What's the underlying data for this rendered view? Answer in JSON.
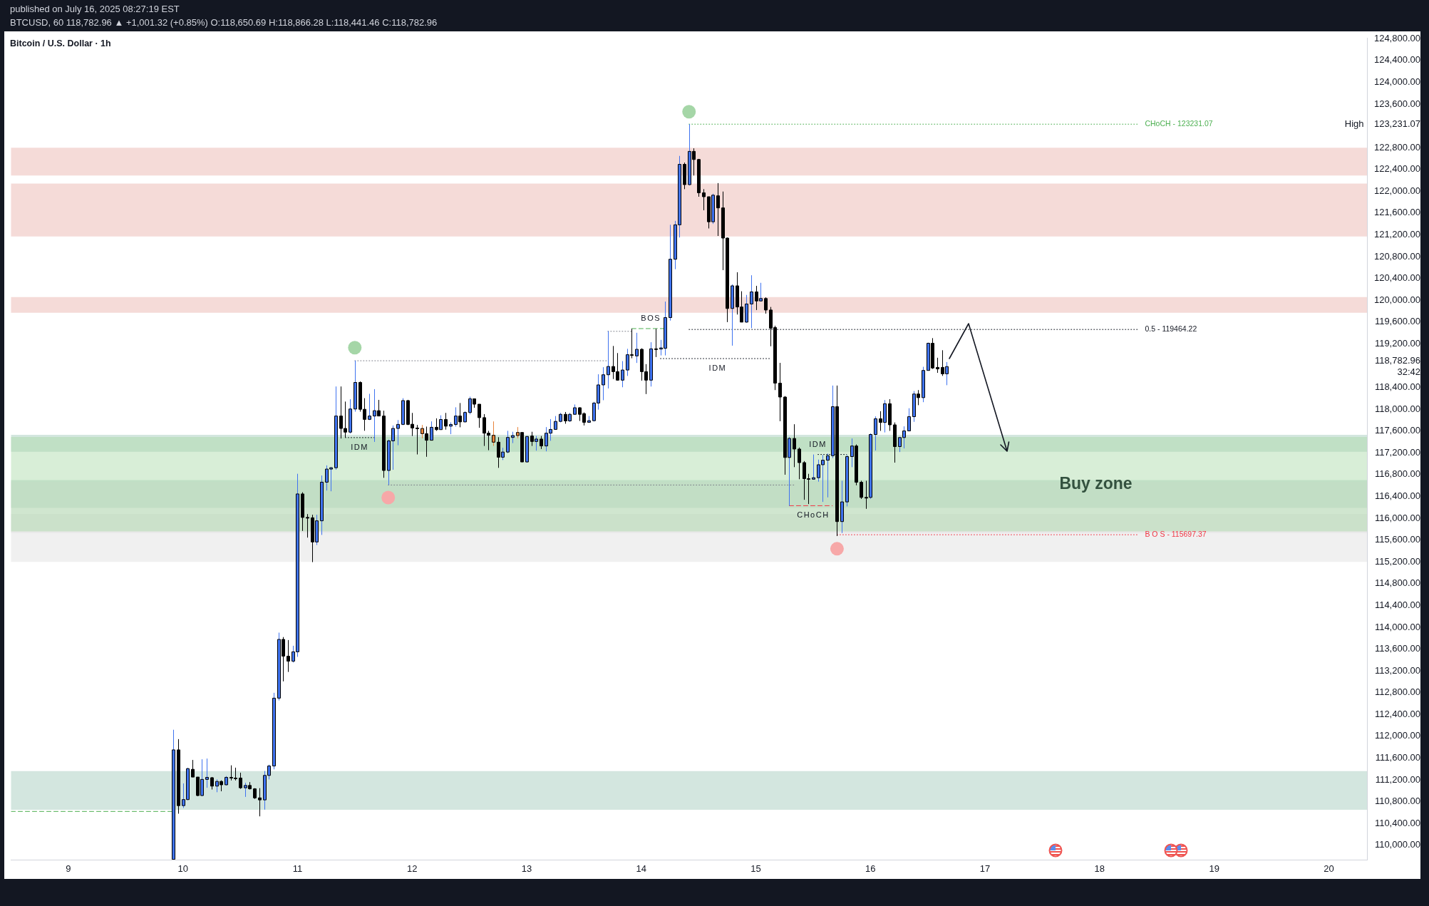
{
  "chart_data": {
    "type": "candlestick",
    "title": "Bitcoin / U.S. Dollar · 1h",
    "subtitle": "BTCUSD, 60  118,782.96 ▲ +1,001.32 (+0.85%)  O:118,650.69  H:118,866.28  L:118,441.46  C:118,782.96",
    "annotations": [
      "published on July 16, 2025 08:27:19 EST",
      {
        "text": "IDM",
        "x": "2025-07-11T13:00",
        "y": 117480
      },
      {
        "text": "BOS",
        "x": "2025-07-14T02:00",
        "y": 119480
      },
      {
        "text": "IDM",
        "x": "2025-07-14T16:00",
        "y": 118930
      },
      {
        "text": "IDM",
        "x": "2025-07-15T13:00",
        "y": 117170
      },
      {
        "text": "CHoCH",
        "x": "2025-07-15T12:00",
        "y": 116230
      }
    ],
    "x": [
      "2025-07-09T22:00",
      "2025-07-09T23:00",
      "2025-07-10T00:00",
      "2025-07-10T01:00",
      "2025-07-10T02:00",
      "2025-07-10T03:00",
      "2025-07-10T04:00",
      "2025-07-10T05:00",
      "2025-07-10T06:00",
      "2025-07-10T07:00",
      "2025-07-10T08:00",
      "2025-07-10T09:00",
      "2025-07-10T10:00",
      "2025-07-10T11:00",
      "2025-07-10T12:00",
      "2025-07-10T13:00",
      "2025-07-10T14:00",
      "2025-07-10T15:00",
      "2025-07-10T16:00",
      "2025-07-10T17:00",
      "2025-07-10T18:00",
      "2025-07-10T19:00",
      "2025-07-10T20:00",
      "2025-07-10T21:00",
      "2025-07-10T22:00",
      "2025-07-10T23:00",
      "2025-07-11T00:00",
      "2025-07-11T01:00",
      "2025-07-11T02:00",
      "2025-07-11T03:00",
      "2025-07-11T04:00",
      "2025-07-11T05:00",
      "2025-07-11T06:00",
      "2025-07-11T07:00",
      "2025-07-11T08:00",
      "2025-07-11T09:00",
      "2025-07-11T10:00",
      "2025-07-11T11:00",
      "2025-07-11T12:00",
      "2025-07-11T13:00",
      "2025-07-11T14:00",
      "2025-07-11T15:00",
      "2025-07-11T16:00",
      "2025-07-11T17:00",
      "2025-07-11T18:00",
      "2025-07-11T19:00",
      "2025-07-11T20:00",
      "2025-07-11T21:00",
      "2025-07-11T22:00",
      "2025-07-11T23:00",
      "2025-07-12T00:00",
      "2025-07-12T01:00",
      "2025-07-12T02:00",
      "2025-07-12T03:00",
      "2025-07-12T04:00",
      "2025-07-12T05:00",
      "2025-07-12T06:00",
      "2025-07-12T07:00",
      "2025-07-12T08:00",
      "2025-07-12T09:00",
      "2025-07-12T10:00",
      "2025-07-12T11:00",
      "2025-07-12T12:00",
      "2025-07-12T13:00",
      "2025-07-12T14:00",
      "2025-07-12T15:00",
      "2025-07-12T16:00",
      "2025-07-12T17:00",
      "2025-07-12T18:00",
      "2025-07-12T19:00",
      "2025-07-12T20:00",
      "2025-07-12T21:00",
      "2025-07-12T22:00",
      "2025-07-12T23:00",
      "2025-07-13T00:00",
      "2025-07-13T01:00",
      "2025-07-13T02:00",
      "2025-07-13T03:00",
      "2025-07-13T04:00",
      "2025-07-13T05:00",
      "2025-07-13T06:00",
      "2025-07-13T07:00",
      "2025-07-13T08:00",
      "2025-07-13T09:00",
      "2025-07-13T10:00",
      "2025-07-13T11:00",
      "2025-07-13T12:00",
      "2025-07-13T13:00",
      "2025-07-13T14:00",
      "2025-07-13T15:00",
      "2025-07-13T16:00",
      "2025-07-13T17:00",
      "2025-07-13T18:00",
      "2025-07-13T19:00",
      "2025-07-13T20:00",
      "2025-07-13T21:00",
      "2025-07-13T22:00",
      "2025-07-13T23:00",
      "2025-07-14T00:00",
      "2025-07-14T01:00",
      "2025-07-14T02:00",
      "2025-07-14T03:00",
      "2025-07-14T04:00",
      "2025-07-14T05:00",
      "2025-07-14T06:00",
      "2025-07-14T07:00",
      "2025-07-14T08:00",
      "2025-07-14T09:00",
      "2025-07-14T10:00",
      "2025-07-14T11:00",
      "2025-07-14T12:00",
      "2025-07-14T13:00",
      "2025-07-14T14:00",
      "2025-07-14T15:00",
      "2025-07-14T16:00",
      "2025-07-14T17:00",
      "2025-07-14T18:00",
      "2025-07-14T19:00",
      "2025-07-14T20:00",
      "2025-07-14T21:00",
      "2025-07-14T22:00",
      "2025-07-14T23:00",
      "2025-07-15T00:00",
      "2025-07-15T01:00",
      "2025-07-15T02:00",
      "2025-07-15T03:00",
      "2025-07-15T04:00",
      "2025-07-15T05:00",
      "2025-07-15T06:00",
      "2025-07-15T07:00",
      "2025-07-15T08:00",
      "2025-07-15T09:00",
      "2025-07-15T10:00",
      "2025-07-15T11:00",
      "2025-07-15T12:00",
      "2025-07-15T13:00",
      "2025-07-15T14:00",
      "2025-07-15T15:00",
      "2025-07-15T16:00",
      "2025-07-15T17:00",
      "2025-07-15T18:00",
      "2025-07-15T19:00",
      "2025-07-15T20:00",
      "2025-07-15T21:00",
      "2025-07-15T22:00",
      "2025-07-15T23:00",
      "2025-07-16T00:00",
      "2025-07-16T01:00",
      "2025-07-16T02:00",
      "2025-07-16T03:00",
      "2025-07-16T04:00",
      "2025-07-16T05:00",
      "2025-07-16T06:00",
      "2025-07-16T07:00",
      "2025-07-16T08:00",
      "2025-07-16T09:00",
      "2025-07-16T10:00",
      "2025-07-16T11:00",
      "2025-07-16T12:00",
      "2025-07-16T13:00",
      "2025-07-16T14:00",
      "2025-07-16T15:00",
      "2025-07-16T16:00"
    ],
    "ohlc": [
      [
        109740,
        112119,
        109740,
        111750
      ],
      [
        111750,
        111947,
        110579,
        110727
      ],
      [
        110727,
        111134,
        110684,
        110838
      ],
      [
        110838,
        111423,
        110826,
        111405
      ],
      [
        111393,
        111565,
        111251,
        111251
      ],
      [
        111251,
        111251,
        110899,
        110912
      ],
      [
        110912,
        111577,
        110899,
        111208
      ],
      [
        111208,
        111590,
        111054,
        111245
      ],
      [
        111239,
        111251,
        111023,
        111085
      ],
      [
        111085,
        111208,
        110973,
        111171
      ],
      [
        111171,
        111190,
        110990,
        111109
      ],
      [
        111109,
        111269,
        111097,
        111245
      ],
      [
        111245,
        111466,
        111189,
        111233
      ],
      [
        111233,
        111423,
        111189,
        111227
      ],
      [
        111233,
        111331,
        111035,
        111054
      ],
      [
        111054,
        111146,
        110887,
        111097
      ],
      [
        111097,
        111158,
        111023,
        111035
      ],
      [
        111035,
        111047,
        110850,
        110869
      ],
      [
        110869,
        111047,
        110530,
        110832
      ],
      [
        110832,
        111362,
        110653,
        111281
      ],
      [
        111281,
        111478,
        111208,
        111454
      ],
      [
        111454,
        112797,
        111392,
        112699
      ],
      [
        112699,
        113901,
        112656,
        113777
      ],
      [
        113777,
        113820,
        113007,
        113469
      ],
      [
        113469,
        113765,
        113180,
        113377
      ],
      [
        113377,
        113660,
        113352,
        113549
      ],
      [
        113549,
        116816,
        113457,
        116446
      ],
      [
        116446,
        116477,
        115768,
        116015
      ],
      [
        116015,
        116076,
        115645,
        116009
      ],
      [
        116009,
        116064,
        115195,
        115565
      ],
      [
        115565,
        116064,
        115509,
        115953
      ],
      [
        115953,
        116785,
        115694,
        116662
      ],
      [
        116662,
        116970,
        116508,
        116902
      ],
      [
        116902,
        116939,
        116495,
        116927
      ],
      [
        116927,
        118418,
        116890,
        117876
      ],
      [
        117876,
        118418,
        117463,
        117648
      ],
      [
        117648,
        118141,
        117481,
        117580
      ],
      [
        117580,
        118184,
        117555,
        118005
      ],
      [
        118005,
        118893,
        117956,
        118492
      ],
      [
        118492,
        118511,
        117956,
        117999
      ],
      [
        117999,
        118203,
        117605,
        117814
      ],
      [
        117814,
        118283,
        117802,
        117876
      ],
      [
        117876,
        118369,
        117401,
        117974
      ],
      [
        117974,
        118172,
        117876,
        117876
      ],
      [
        117876,
        117974,
        116742,
        116877
      ],
      [
        116877,
        117444,
        116612,
        117420
      ],
      [
        117420,
        117703,
        116890,
        117648
      ],
      [
        117648,
        117802,
        117340,
        117722
      ],
      [
        117722,
        118203,
        117709,
        118159
      ],
      [
        118159,
        118172,
        117709,
        117722
      ],
      [
        117725,
        117933,
        117509,
        117656
      ],
      [
        117656,
        117712,
        117171,
        117650
      ],
      [
        117647,
        117712,
        117466,
        117552
      ],
      [
        117552,
        117682,
        117128,
        117431
      ],
      [
        117431,
        117777,
        117431,
        117669
      ],
      [
        117669,
        117833,
        117604,
        117626
      ],
      [
        117626,
        117889,
        117626,
        117812
      ],
      [
        117812,
        117933,
        117626,
        117690
      ],
      [
        117690,
        117760,
        117543,
        117721
      ],
      [
        117721,
        118036,
        117682,
        117876
      ],
      [
        117876,
        118114,
        117669,
        117768
      ],
      [
        117768,
        117963,
        117760,
        117941
      ],
      [
        117941,
        118231,
        117907,
        118192
      ],
      [
        118192,
        118192,
        118028,
        118093
      ],
      [
        118093,
        118093,
        117660,
        117846
      ],
      [
        117846,
        117911,
        117327,
        117561
      ],
      [
        117561,
        117604,
        117249,
        117522
      ],
      [
        117522,
        117777,
        117327,
        117396
      ],
      [
        117396,
        117487,
        116925,
        117120
      ],
      [
        117120,
        117293,
        117068,
        117215
      ],
      [
        117215,
        117604,
        117193,
        117483
      ],
      [
        117483,
        117587,
        117379,
        117517
      ],
      [
        117517,
        117673,
        117466,
        117574
      ],
      [
        117574,
        117574,
        117033,
        117033
      ],
      [
        117033,
        117509,
        117025,
        117500
      ],
      [
        117509,
        117587,
        117327,
        117409
      ],
      [
        117409,
        117509,
        117241,
        117453
      ],
      [
        117453,
        117509,
        117271,
        117327
      ],
      [
        117327,
        117673,
        117228,
        117561
      ],
      [
        117561,
        117820,
        117422,
        117630
      ],
      [
        117630,
        117876,
        117630,
        117777
      ],
      [
        117777,
        117933,
        117760,
        117907
      ],
      [
        117907,
        117950,
        117734,
        117786
      ],
      [
        117786,
        117933,
        117768,
        117907
      ],
      [
        117907,
        118088,
        117898,
        118028
      ],
      [
        118028,
        118036,
        117786,
        117907
      ],
      [
        117920,
        117941,
        117703,
        117760
      ],
      [
        117760,
        117876,
        117760,
        117790
      ],
      [
        117790,
        118136,
        117777,
        118114
      ],
      [
        118114,
        118642,
        117993,
        118447
      ],
      [
        118447,
        118772,
        118166,
        118633
      ],
      [
        118633,
        119433,
        118382,
        118785
      ],
      [
        118785,
        119161,
        118555,
        118690
      ],
      [
        118690,
        119031,
        118525,
        118534
      ],
      [
        118534,
        118884,
        118404,
        118720
      ],
      [
        118720,
        119109,
        118612,
        119001
      ],
      [
        119001,
        119477,
        118936,
        118995
      ],
      [
        118979,
        119403,
        118850,
        119100
      ],
      [
        119100,
        119118,
        118525,
        118690
      ],
      [
        118690,
        118828,
        118279,
        118534
      ],
      [
        118534,
        119230,
        118417,
        119109
      ],
      [
        119109,
        119477,
        118958,
        119105
      ],
      [
        119105,
        119273,
        118988,
        119126
      ],
      [
        119118,
        119976,
        118988,
        119682
      ],
      [
        119682,
        121385,
        119627,
        120753
      ],
      [
        120753,
        121457,
        120570,
        121385
      ],
      [
        121385,
        122649,
        121152,
        122494
      ],
      [
        122494,
        122527,
        122039,
        122122
      ],
      [
        122122,
        123231.07,
        122106,
        122732
      ],
      [
        122732,
        122788,
        122289,
        122583
      ],
      [
        122583,
        122594,
        121900,
        121972
      ],
      [
        121972,
        122039,
        121651,
        121900
      ],
      [
        121900,
        121900,
        121318,
        121440
      ],
      [
        121440,
        121956,
        121401,
        121928
      ],
      [
        121917,
        122150,
        121180,
        121695
      ],
      [
        121695,
        121995,
        120553,
        121141
      ],
      [
        121141,
        121152,
        119599,
        119849
      ],
      [
        119849,
        120292,
        119167,
        120265
      ],
      [
        120265,
        120514,
        119738,
        119877
      ],
      [
        119877,
        120165,
        119599,
        119599
      ],
      [
        119599,
        120098,
        119588,
        119932
      ],
      [
        119932,
        120459,
        119488,
        120154
      ],
      [
        120154,
        120265,
        119821,
        119987
      ],
      [
        119987,
        120320,
        119987,
        120032
      ],
      [
        120032,
        120054,
        119755,
        119821
      ],
      [
        119821,
        119877,
        119156,
        119488
      ],
      [
        119499,
        119533,
        118352,
        118479
      ],
      [
        118479,
        118851,
        117781,
        118224
      ],
      [
        118224,
        118241,
        116799,
        117115
      ],
      [
        117115,
        117492,
        116228,
        117464
      ],
      [
        117464,
        117725,
        116938,
        117270
      ],
      [
        117270,
        117298,
        116716,
        117021
      ],
      [
        117021,
        117049,
        116339,
        116727
      ],
      [
        116727,
        116815,
        116261,
        116716
      ],
      [
        116716,
        117170,
        116716,
        116744
      ],
      [
        116744,
        117076,
        116671,
        116982
      ],
      [
        116982,
        117160,
        116300,
        117065
      ],
      [
        117065,
        117187,
        116383,
        117148
      ],
      [
        117148,
        118435,
        117104,
        118047
      ],
      [
        118047,
        118435,
        115673,
        115939
      ],
      [
        115939,
        116688,
        115729,
        116300
      ],
      [
        116300,
        117160,
        116217,
        117132
      ],
      [
        117132,
        117464,
        116938,
        117326
      ],
      [
        117326,
        117354,
        116605,
        116660
      ],
      [
        116660,
        116688,
        116355,
        116383
      ],
      [
        116383,
        116688,
        116173,
        116383
      ],
      [
        116383,
        117559,
        116355,
        117537
      ],
      [
        117537,
        117869,
        117243,
        117825
      ],
      [
        117825,
        117964,
        117603,
        117758
      ],
      [
        117758,
        118169,
        117575,
        118102
      ],
      [
        118102,
        118185,
        117603,
        117714
      ],
      [
        117714,
        117758,
        117021,
        117315
      ],
      [
        117315,
        117492,
        117215,
        117481
      ],
      [
        117481,
        117686,
        117282,
        117603
      ],
      [
        117603,
        118019,
        117603,
        117864
      ],
      [
        117864,
        118335,
        117769,
        118280
      ],
      [
        118280,
        118352,
        118075,
        118213
      ],
      [
        118213,
        118779,
        118130,
        118712
      ],
      [
        118712,
        119222,
        118712,
        119211
      ],
      [
        119211,
        119305,
        118740,
        118757
      ],
      [
        118768,
        118945,
        118668,
        118740
      ],
      [
        118768,
        119083,
        118612,
        118650
      ],
      [
        118650.69,
        118866.28,
        118441.46,
        118782.96
      ]
    ],
    "colors": [
      "#3f73f0",
      "#000000",
      "#3f73f0",
      "#3f73f0",
      "#000000",
      "#000000",
      "#3f73f0",
      "#3f73f0",
      "#000000",
      "#3f73f0",
      "#000000",
      "#3f73f0",
      "#000000",
      "#000000",
      "#000000",
      "#3f73f0",
      "#000000",
      "#000000",
      "#000000",
      "#3f73f0",
      "#3f73f0",
      "#3f73f0",
      "#3f73f0",
      "#000000",
      "#000000",
      "#3f73f0",
      "#3f73f0",
      "#000000",
      "#000000",
      "#000000",
      "#3f73f0",
      "#3f73f0",
      "#3f73f0",
      "#3f73f0",
      "#3f73f0",
      "#000000",
      "#000000",
      "#3f73f0",
      "#3f73f0",
      "#000000",
      "#000000",
      "#3f73f0",
      "#3f73f0",
      "#000000",
      "#000000",
      "#3f73f0",
      "#3f73f0",
      "#3f73f0",
      "#3f73f0",
      "#000000",
      "#000000",
      "#000000",
      "#e8833a",
      "#000000",
      "#3f73f0",
      "#000000",
      "#3f73f0",
      "#000000",
      "#3f73f0",
      "#3f73f0",
      "#000000",
      "#3f73f0",
      "#3f73f0",
      "#000000",
      "#000000",
      "#000000",
      "#000000",
      "#e8833a",
      "#000000",
      "#3f73f0",
      "#3f73f0",
      "#3f73f0",
      "#e8833a",
      "#000000",
      "#3f73f0",
      "#000000",
      "#3f73f0",
      "#000000",
      "#3f73f0",
      "#3f73f0",
      "#3f73f0",
      "#3f73f0",
      "#000000",
      "#3f73f0",
      "#3f73f0",
      "#000000",
      "#000000",
      "#3f73f0",
      "#3f73f0",
      "#3f73f0",
      "#3f73f0",
      "#3f73f0",
      "#000000",
      "#000000",
      "#3f73f0",
      "#3f73f0",
      "#000000",
      "#3f73f0",
      "#000000",
      "#000000",
      "#3f73f0",
      "#000000",
      "#3f73f0",
      "#3f73f0",
      "#3f73f0",
      "#3f73f0",
      "#3f73f0",
      "#000000",
      "#3f73f0",
      "#000000",
      "#000000",
      "#000000",
      "#000000",
      "#3f73f0",
      "#000000",
      "#000000",
      "#000000",
      "#3f73f0",
      "#000000",
      "#000000",
      "#3f73f0",
      "#3f73f0",
      "#000000",
      "#3f73f0",
      "#000000",
      "#000000",
      "#000000",
      "#000000",
      "#000000",
      "#3f73f0",
      "#000000",
      "#000000",
      "#000000",
      "#000000",
      "#3f73f0",
      "#3f73f0",
      "#3f73f0",
      "#3f73f0",
      "#3f73f0",
      "#000000",
      "#3f73f0",
      "#3f73f0",
      "#3f73f0",
      "#000000",
      "#000000",
      "#000000",
      "#3f73f0",
      "#3f73f0",
      "#000000",
      "#3f73f0",
      "#000000",
      "#000000",
      "#3f73f0",
      "#3f73f0",
      "#3f73f0",
      "#3f73f0",
      "#000000",
      "#3f73f0",
      "#3f73f0",
      "#000000",
      "#000000",
      "#000000",
      "#3f73f0"
    ],
    "series": [
      {
        "type": "line",
        "x": [
          "2025-07-08T12:00",
          "2025-07-09T22:00"
        ],
        "values": [
          110620,
          110620
        ],
        "color": "#4caf50",
        "line_style": "dashed"
      },
      {
        "type": "line",
        "x": [
          "2025-07-11T12:00",
          "2025-07-13T17:00"
        ],
        "values": [
          118890,
          118890
        ],
        "color": "#787b86",
        "line_style": "dotted"
      },
      {
        "type": "line",
        "x": [
          "2025-07-13T17:00",
          "2025-07-13T22:00"
        ],
        "values": [
          119430,
          119430
        ],
        "color": "#787b86",
        "line_style": "dotted"
      },
      {
        "type": "line",
        "x": [
          "2025-07-13T22:00",
          "2025-07-14T05:00"
        ],
        "values": [
          119480,
          119480
        ],
        "color": "#4caf50",
        "line_style": "dashed"
      },
      {
        "type": "line",
        "x": [
          "2025-07-11T10:00",
          "2025-07-11T16:00"
        ],
        "values": [
          117480,
          117480
        ],
        "color": "#131722",
        "line_style": "dotted"
      },
      {
        "type": "line",
        "x": [
          "2025-07-14T04:00",
          "2025-07-15T03:00"
        ],
        "values": [
          118930,
          118930
        ],
        "color": "#131722",
        "line_style": "dotted"
      },
      {
        "type": "line",
        "x": [
          "2025-07-11T19:00",
          "2025-07-15T08:00"
        ],
        "values": [
          116610,
          116610
        ],
        "color": "#787b86",
        "line_style": "dotted"
      },
      {
        "type": "line",
        "x": [
          "2025-07-15T07:00",
          "2025-07-15T16:00"
        ],
        "values": [
          116230,
          116230
        ],
        "color": "#f23645",
        "line_style": "dashed"
      },
      {
        "type": "line",
        "x": [
          "2025-07-15T13:00",
          "2025-07-15T19:00"
        ],
        "values": [
          117170,
          117170
        ],
        "color": "#131722",
        "line_style": "dotted"
      },
      {
        "type": "line",
        "name": "CHoCH - 123231.07",
        "x": [
          "2025-07-14T10:00",
          "2025-07-18T08:00"
        ],
        "values": [
          123231.07,
          123231.07
        ],
        "color": "#4caf50",
        "line_style": "dotted"
      },
      {
        "type": "line",
        "name": "0.5 - 119464.22",
        "x": [
          "2025-07-14T10:00",
          "2025-07-18T08:00"
        ],
        "values": [
          119464.22,
          119464.22
        ],
        "color": "#131722",
        "line_style": "dotted"
      },
      {
        "type": "line",
        "name": "B O S - 115697.37",
        "x": [
          "2025-07-15T17:00",
          "2025-07-18T08:00"
        ],
        "values": [
          115697.37,
          115697.37
        ],
        "color": "#f23645",
        "line_style": "dotted"
      },
      {
        "type": "scatter",
        "x": [
          "2025-07-11T12:00",
          "2025-07-14T10:00"
        ],
        "values": [
          119130,
          123460
        ],
        "color": "#a5d6a7",
        "marker": "circle"
      },
      {
        "type": "scatter",
        "x": [
          "2025-07-11T19:00",
          "2025-07-15T17:00"
        ],
        "values": [
          116380,
          115440
        ],
        "color": "#f7a8a8",
        "marker": "circle"
      }
    ],
    "bands": [
      {
        "axis": "y",
        "from": 122290,
        "to": 122800,
        "color": "#e9afa8"
      },
      {
        "axis": "y",
        "from": 121170,
        "to": 122140,
        "color": "#e9afa8"
      },
      {
        "axis": "y",
        "from": 119770,
        "to": 120060,
        "color": "#e9afa8"
      },
      {
        "axis": "y",
        "from": 117220,
        "to": 117530,
        "color": "#9dc7b8"
      },
      {
        "axis": "y",
        "from": 116190,
        "to": 116700,
        "color": "#9dc7b8"
      },
      {
        "axis": "y",
        "from": 110650,
        "to": 111360,
        "color": "#9dc7b8"
      },
      {
        "axis": "y",
        "from": 115200,
        "to": 116080,
        "color": "#dedede"
      },
      {
        "axis": "y",
        "from": 115730,
        "to": 116670,
        "color": "#dedede"
      },
      {
        "axis": "y",
        "from": 115760,
        "to": 117490,
        "color": "#a8d9a6",
        "label": "Buy zone"
      }
    ],
    "xlim": [
      "2025-07-08T12:00",
      "2025-07-20T08:00"
    ],
    "xticks": [
      {
        "value": "2025-07-09",
        "label": "9"
      },
      {
        "value": "2025-07-10",
        "label": "10"
      },
      {
        "value": "2025-07-11",
        "label": "11"
      },
      {
        "value": "2025-07-12",
        "label": "12"
      },
      {
        "value": "2025-07-13",
        "label": "13"
      },
      {
        "value": "2025-07-14",
        "label": "14"
      },
      {
        "value": "2025-07-15",
        "label": "15"
      },
      {
        "value": "2025-07-16",
        "label": "16"
      },
      {
        "value": "2025-07-17",
        "label": "17"
      },
      {
        "value": "2025-07-18",
        "label": "18"
      },
      {
        "value": "2025-07-19",
        "label": "19"
      },
      {
        "value": "2025-07-20",
        "label": "20"
      }
    ],
    "ylim": [
      109735,
      124810
    ],
    "yticks": [
      {
        "value": 110000,
        "label": "110,000.00"
      },
      {
        "value": 110400,
        "label": "110,400.00"
      },
      {
        "value": 110800,
        "label": "110,800.00"
      },
      {
        "value": 111200,
        "label": "111,200.00"
      },
      {
        "value": 111600,
        "label": "111,600.00"
      },
      {
        "value": 112000,
        "label": "112,000.00"
      },
      {
        "value": 112400,
        "label": "112,400.00"
      },
      {
        "value": 112800,
        "label": "112,800.00"
      },
      {
        "value": 113200,
        "label": "113,200.00"
      },
      {
        "value": 113600,
        "label": "113,600.00"
      },
      {
        "value": 114000,
        "label": "114,000.00"
      },
      {
        "value": 114400,
        "label": "114,400.00"
      },
      {
        "value": 114800,
        "label": "114,800.00"
      },
      {
        "value": 115200,
        "label": "115,200.00"
      },
      {
        "value": 115600,
        "label": "115,600.00"
      },
      {
        "value": 116000,
        "label": "116,000.00"
      },
      {
        "value": 116400,
        "label": "116,400.00"
      },
      {
        "value": 116800,
        "label": "116,800.00"
      },
      {
        "value": 117200,
        "label": "117,200.00"
      },
      {
        "value": 117600,
        "label": "117,600.00"
      },
      {
        "value": 118000,
        "label": "118,000.00"
      },
      {
        "value": 118400,
        "label": "118,400.00"
      },
      {
        "value": 118782.96,
        "label": "118,782.96\n32:42"
      },
      {
        "value": 119200,
        "label": "119,200.00"
      },
      {
        "value": 119600,
        "label": "119,600.00"
      },
      {
        "value": 120000,
        "label": "120,000.00"
      },
      {
        "value": 120400,
        "label": "120,400.00"
      },
      {
        "value": 120800,
        "label": "120,800.00"
      },
      {
        "value": 121200,
        "label": "121,200.00"
      },
      {
        "value": 121600,
        "label": "121,600.00"
      },
      {
        "value": 122000,
        "label": "122,000.00"
      },
      {
        "value": 122400,
        "label": "122,400.00"
      },
      {
        "value": 122800,
        "label": "122,800.00"
      },
      {
        "value": 123231.07,
        "label": "High    123,231.07"
      },
      {
        "value": 123600,
        "label": "123,600.00"
      },
      {
        "value": 124000,
        "label": "124,000.00"
      },
      {
        "value": 124400,
        "label": "124,400.00"
      },
      {
        "value": 124800,
        "label": "124,800.00"
      }
    ]
  }
}
